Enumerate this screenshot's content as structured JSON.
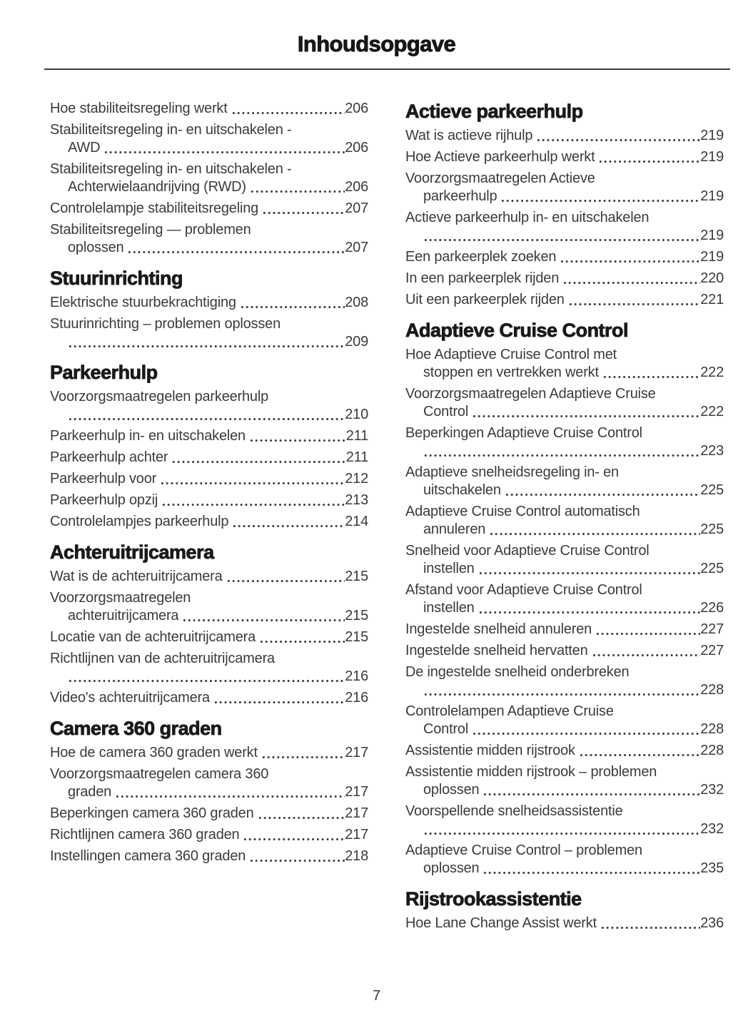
{
  "header": {
    "title": "Inhoudsopgave"
  },
  "footer": {
    "page_number": "7"
  },
  "toc": {
    "columns": [
      {
        "sections": [
          {
            "heading": null,
            "entries": [
              {
                "text": "Hoe stabiliteitsregeling werkt",
                "page": "206"
              },
              {
                "text": "Stabiliteitsregeling in- en uitschakelen -",
                "cont": "AWD",
                "page": "206"
              },
              {
                "text": "Stabiliteitsregeling in- en uitschakelen -",
                "cont": "Achterwielaandrijving (RWD)",
                "page": "206"
              },
              {
                "text": "Controlelampje stabiliteitsregeling",
                "page": "207"
              },
              {
                "text": "Stabiliteitsregeling — problemen",
                "cont": "oplossen",
                "page": "207"
              }
            ]
          },
          {
            "heading": "Stuurinrichting",
            "entries": [
              {
                "text": "Elektrische stuurbekrachtiging",
                "page": "208"
              },
              {
                "text": "Stuurinrichting – problemen oplossen",
                "cont": "",
                "page": "209"
              }
            ]
          },
          {
            "heading": "Parkeerhulp",
            "entries": [
              {
                "text": "Voorzorgsmaatregelen parkeerhulp",
                "cont": "",
                "page": "210"
              },
              {
                "text": "Parkeerhulp in- en uitschakelen",
                "page": "211"
              },
              {
                "text": "Parkeerhulp achter",
                "page": "211"
              },
              {
                "text": "Parkeerhulp voor",
                "page": "212"
              },
              {
                "text": "Parkeerhulp opzij",
                "page": "213"
              },
              {
                "text": "Controlelampjes parkeerhulp",
                "page": "214"
              }
            ]
          },
          {
            "heading": "Achteruitrijcamera",
            "entries": [
              {
                "text": "Wat is de achteruitrijcamera",
                "page": "215"
              },
              {
                "text": "Voorzorgsmaatregelen",
                "cont": "achteruitrijcamera",
                "page": "215"
              },
              {
                "text": "Locatie van de achteruitrijcamera",
                "page": "215"
              },
              {
                "text": "Richtlijnen van de achteruitrijcamera",
                "cont": "",
                "page": "216"
              },
              {
                "text": "Video's achteruitrijcamera",
                "page": "216"
              }
            ]
          },
          {
            "heading": "Camera 360 graden",
            "entries": [
              {
                "text": "Hoe de camera 360 graden werkt",
                "page": "217"
              },
              {
                "text": "Voorzorgsmaatregelen camera 360",
                "cont": "graden",
                "page": "217"
              },
              {
                "text": "Beperkingen camera 360 graden",
                "page": "217"
              },
              {
                "text": "Richtlijnen camera 360 graden",
                "page": "217"
              },
              {
                "text": "Instellingen camera 360 graden",
                "page": "218"
              }
            ]
          }
        ]
      },
      {
        "sections": [
          {
            "heading": "Actieve parkeerhulp",
            "entries": [
              {
                "text": "Wat is actieve rijhulp",
                "page": "219"
              },
              {
                "text": "Hoe Actieve parkeerhulp werkt",
                "page": "219"
              },
              {
                "text": "Voorzorgsmaatregelen Actieve",
                "cont": "parkeerhulp",
                "page": "219"
              },
              {
                "text": "Actieve parkeerhulp in- en uitschakelen",
                "cont": "",
                "page": "219"
              },
              {
                "text": "Een parkeerplek zoeken",
                "page": "219"
              },
              {
                "text": "In een parkeerplek rijden",
                "page": "220"
              },
              {
                "text": "Uit een parkeerplek rijden",
                "page": "221"
              }
            ]
          },
          {
            "heading": "Adaptieve Cruise Control",
            "entries": [
              {
                "text": "Hoe Adaptieve Cruise Control met",
                "cont": "stoppen en vertrekken werkt",
                "page": "222"
              },
              {
                "text": "Voorzorgsmaatregelen Adaptieve Cruise",
                "cont": "Control",
                "page": "222"
              },
              {
                "text": "Beperkingen Adaptieve Cruise Control",
                "cont": "",
                "page": "223"
              },
              {
                "text": "Adaptieve snelheidsregeling in- en",
                "cont": "uitschakelen",
                "page": "225"
              },
              {
                "text": "Adaptieve Cruise Control automatisch",
                "cont": "annuleren",
                "page": "225"
              },
              {
                "text": "Snelheid voor Adaptieve Cruise Control",
                "cont": "instellen",
                "page": "225"
              },
              {
                "text": "Afstand voor Adaptieve Cruise Control",
                "cont": "instellen",
                "page": "226"
              },
              {
                "text": "Ingestelde snelheid annuleren",
                "page": "227"
              },
              {
                "text": "Ingestelde snelheid hervatten",
                "page": "227"
              },
              {
                "text": "De ingestelde snelheid onderbreken",
                "cont": "",
                "page": "228"
              },
              {
                "text": "Controlelampen Adaptieve Cruise",
                "cont": "Control",
                "page": "228"
              },
              {
                "text": "Assistentie midden rijstrook",
                "page": "228"
              },
              {
                "text": "Assistentie midden rijstrook – problemen",
                "cont": "oplossen",
                "page": "232"
              },
              {
                "text": "Voorspellende snelheidsassistentie",
                "cont": "",
                "page": "232"
              },
              {
                "text": "Adaptieve Cruise Control – problemen",
                "cont": "oplossen",
                "page": "235"
              }
            ]
          },
          {
            "heading": "Rijstrookassistentie",
            "entries": [
              {
                "text": "Hoe Lane Change Assist werkt",
                "page": "236"
              }
            ]
          }
        ]
      }
    ]
  }
}
